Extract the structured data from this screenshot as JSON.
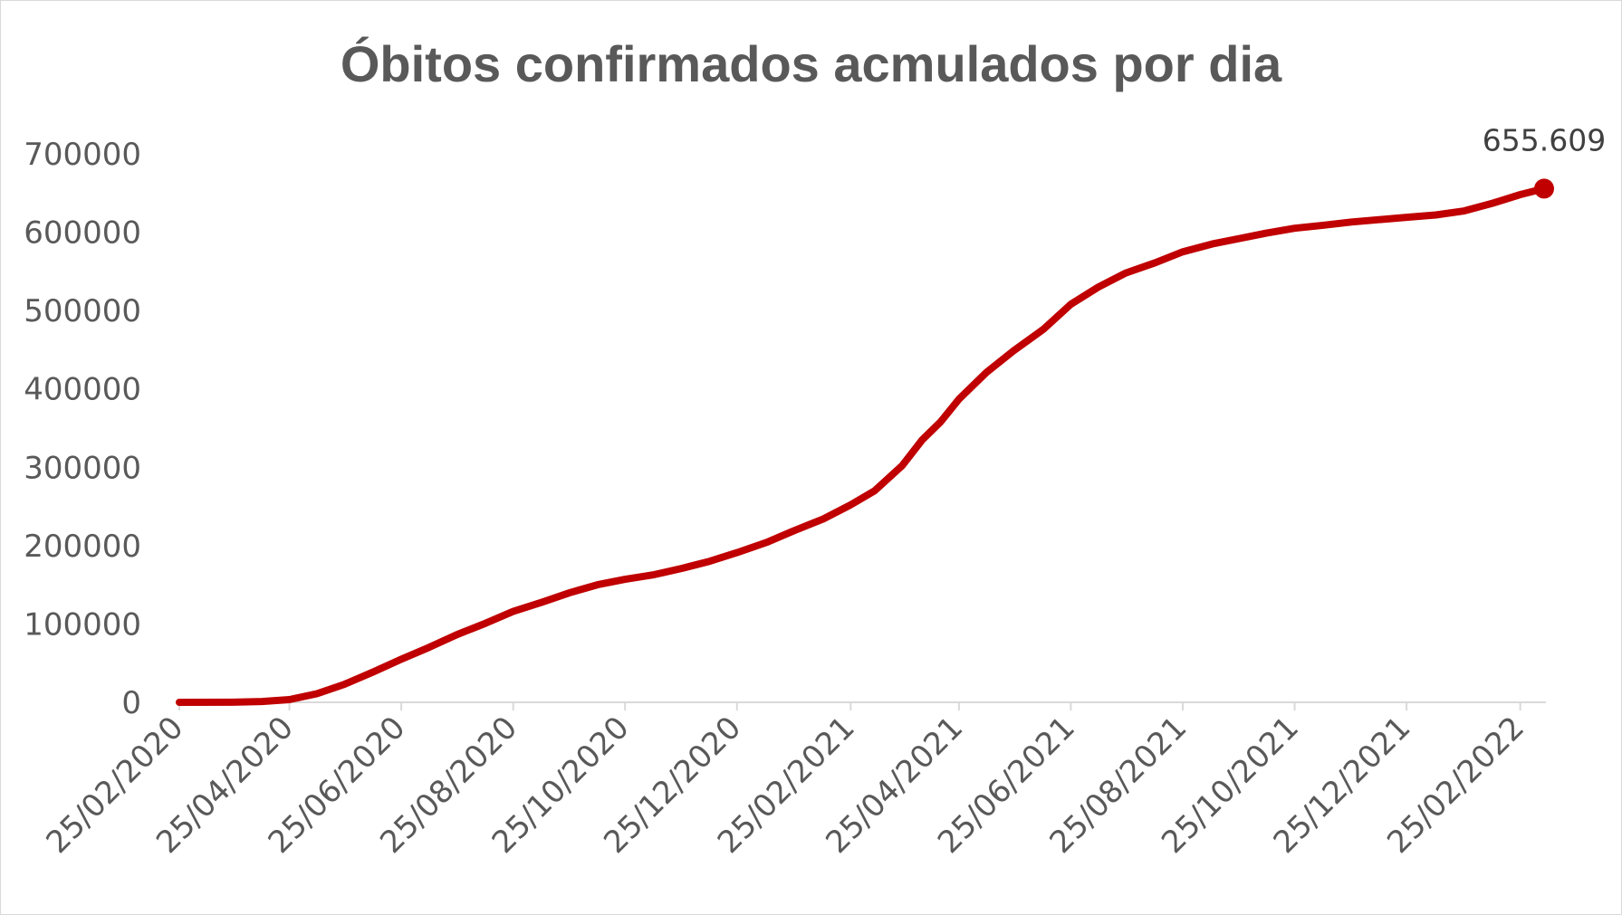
{
  "chart_data": {
    "type": "line",
    "title": "Óbitos confirmados acmulados por dia",
    "xlabel": "",
    "ylabel": "",
    "ylim": [
      0,
      700000
    ],
    "yticks": [
      "0",
      "100000",
      "200000",
      "300000",
      "400000",
      "500000",
      "600000",
      "700000"
    ],
    "xticks": [
      "25/02/2020",
      "25/04/2020",
      "25/06/2020",
      "25/08/2020",
      "25/10/2020",
      "25/12/2020",
      "25/02/2021",
      "25/04/2021",
      "25/06/2021",
      "25/08/2021",
      "25/10/2021",
      "25/12/2021",
      "25/02/2022"
    ],
    "grid": false,
    "legend": "none",
    "series": [
      {
        "color": "#c00000",
        "points": [
          [
            "2020-02-25",
            0
          ],
          [
            "2020-03-25",
            100
          ],
          [
            "2020-04-10",
            1000
          ],
          [
            "2020-04-25",
            3500
          ],
          [
            "2020-05-10",
            11000
          ],
          [
            "2020-05-25",
            23000
          ],
          [
            "2020-06-10",
            39000
          ],
          [
            "2020-06-25",
            55000
          ],
          [
            "2020-07-10",
            70000
          ],
          [
            "2020-07-25",
            86000
          ],
          [
            "2020-08-10",
            101000
          ],
          [
            "2020-08-25",
            116000
          ],
          [
            "2020-09-10",
            128000
          ],
          [
            "2020-09-25",
            140000
          ],
          [
            "2020-10-10",
            150000
          ],
          [
            "2020-10-25",
            157000
          ],
          [
            "2020-11-10",
            163000
          ],
          [
            "2020-11-25",
            171000
          ],
          [
            "2020-12-10",
            180000
          ],
          [
            "2020-12-25",
            191000
          ],
          [
            "2021-01-10",
            204000
          ],
          [
            "2021-01-25",
            219000
          ],
          [
            "2021-02-10",
            234000
          ],
          [
            "2021-02-25",
            252000
          ],
          [
            "2021-03-10",
            270000
          ],
          [
            "2021-03-25",
            302000
          ],
          [
            "2021-04-05",
            335000
          ],
          [
            "2021-04-15",
            358000
          ],
          [
            "2021-04-25",
            387000
          ],
          [
            "2021-05-10",
            421000
          ],
          [
            "2021-05-25",
            449000
          ],
          [
            "2021-06-10",
            476000
          ],
          [
            "2021-06-25",
            508000
          ],
          [
            "2021-07-10",
            530000
          ],
          [
            "2021-07-25",
            548000
          ],
          [
            "2021-08-10",
            561000
          ],
          [
            "2021-08-25",
            575000
          ],
          [
            "2021-09-10",
            585000
          ],
          [
            "2021-09-25",
            592000
          ],
          [
            "2021-10-10",
            599000
          ],
          [
            "2021-10-25",
            605000
          ],
          [
            "2021-11-10",
            609000
          ],
          [
            "2021-11-25",
            613000
          ],
          [
            "2021-12-10",
            616000
          ],
          [
            "2021-12-25",
            619000
          ],
          [
            "2022-01-10",
            622000
          ],
          [
            "2022-01-25",
            627000
          ],
          [
            "2022-02-10",
            637000
          ],
          [
            "2022-02-25",
            648000
          ],
          [
            "2022-03-10",
            655609
          ]
        ]
      }
    ],
    "annotations": [
      {
        "x": "2022-03-10",
        "y": 655609,
        "text": "655.609"
      }
    ]
  }
}
